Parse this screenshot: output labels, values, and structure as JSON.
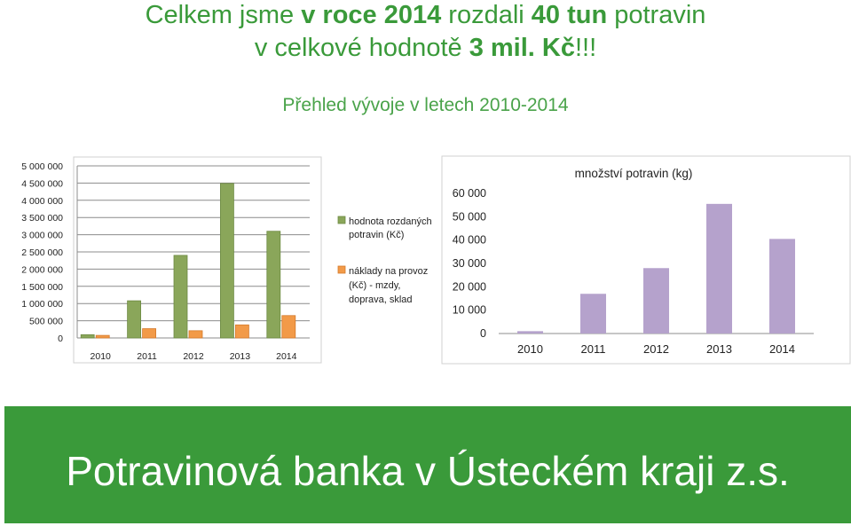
{
  "header": {
    "line1_a": "Celkem jsme ",
    "line1_b": "v roce 2014",
    "line1_c": " rozdali ",
    "line1_d": "40 tun",
    "line1_e": " potravin",
    "line2_a": "v celkové hodnotě ",
    "line2_b": "3 mil. Kč",
    "line2_c": "!!!",
    "subtitle": "Přehled vývoje v letech 2010-2014"
  },
  "banner": {
    "text": "Potravinová banka v Ústeckém kraji z.s."
  },
  "colors": {
    "green": "#3a9a3a",
    "bar_green": "#8aa65a",
    "bar_orange": "#f29a48",
    "bar_purple": "#b5a2cc",
    "grid": "#8c8c8c"
  },
  "chart_data": [
    {
      "type": "bar",
      "categories": [
        "2010",
        "2011",
        "2012",
        "2013",
        "2014"
      ],
      "series": [
        {
          "name": "hodnota rozdaných potravin (Kč)",
          "values": [
            95000,
            1080000,
            2400000,
            4490000,
            3100000
          ],
          "color": "#8aa65a"
        },
        {
          "name": "náklady na provoz (Kč) - mzdy, doprava, sklad",
          "values": [
            75000,
            270000,
            210000,
            380000,
            650000
          ],
          "color": "#f29a48"
        }
      ],
      "ylim": [
        0,
        5000000
      ],
      "yticks": [
        "0",
        "500 000",
        "1 000 000",
        "1 500 000",
        "2 000 000",
        "2 500 000",
        "3 000 000",
        "3 500 000",
        "4 000 000",
        "4 500 000",
        "5 000 000"
      ],
      "grid": true,
      "legend": "right"
    },
    {
      "type": "bar",
      "title": "množství potravin (kg)",
      "categories": [
        "2010",
        "2011",
        "2012",
        "2013",
        "2014"
      ],
      "series": [
        {
          "values": [
            1000,
            17000,
            28000,
            55500,
            40500
          ],
          "color": "#b5a2cc"
        }
      ],
      "ylim": [
        0,
        60000
      ],
      "yticks": [
        "0",
        "10 000",
        "20 000",
        "30 000",
        "40 000",
        "50 000",
        "60 000"
      ],
      "grid": false
    }
  ]
}
